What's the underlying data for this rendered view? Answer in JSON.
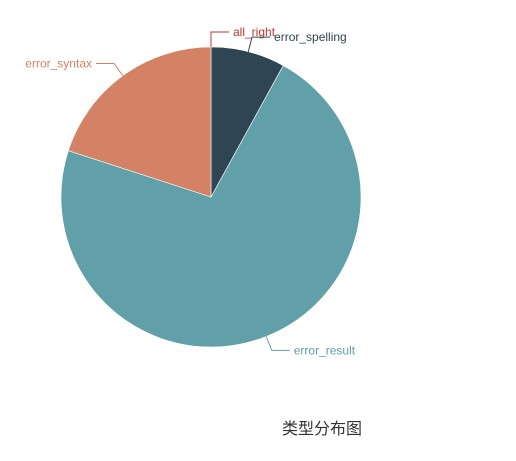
{
  "chart_data": {
    "type": "pie",
    "title": "类型分布图",
    "start_angle_deg": 90,
    "direction": "clockwise",
    "slices": [
      {
        "label": "all_right",
        "value": 0,
        "color": "#c23531"
      },
      {
        "label": "error_spelling",
        "value": 8,
        "color": "#2f4554"
      },
      {
        "label": "error_result",
        "value": 72,
        "color": "#61a0a8"
      },
      {
        "label": "error_syntax",
        "value": 20,
        "color": "#d48265"
      }
    ]
  }
}
